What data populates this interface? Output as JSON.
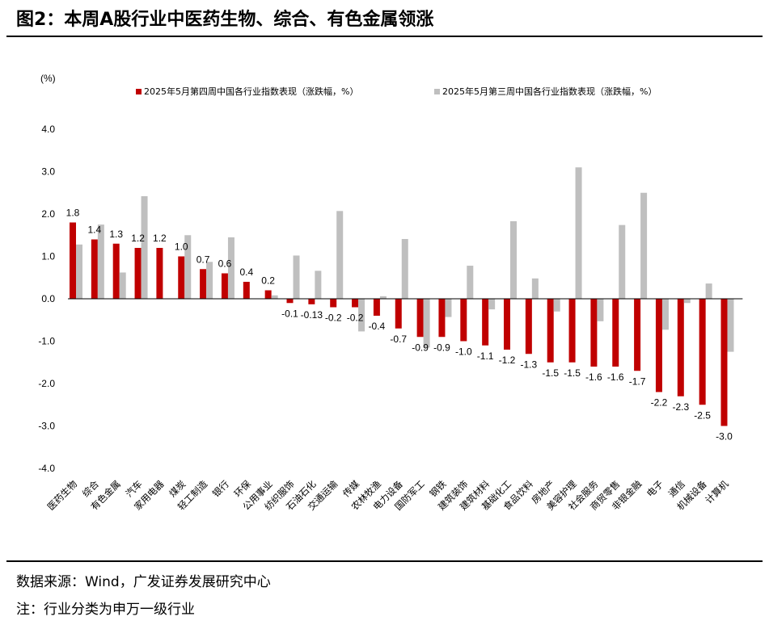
{
  "figure_title": "图2：本周A股行业中医药生物、综合、有色金属领涨",
  "source_text": "数据来源：Wind，广发证券发展研究中心",
  "note_text": "注：行业分类为申万一级行业",
  "colors": {
    "series1": "#C00000",
    "series2": "#BFBFBF"
  },
  "chart_data": {
    "type": "bar",
    "unit_label": "(%)",
    "ylim": [
      -4.0,
      4.0
    ],
    "yticks": [
      "4.0",
      "3.0",
      "2.0",
      "1.0",
      "0.0",
      "-1.0",
      "-2.0",
      "-3.0",
      "-4.0"
    ],
    "legend_position": "top",
    "grid": false,
    "categories": [
      "医药生物",
      "综合",
      "有色金属",
      "汽车",
      "家用电器",
      "煤炭",
      "轻工制造",
      "银行",
      "环保",
      "公用事业",
      "纺织服饰",
      "石油石化",
      "交通运输",
      "传媒",
      "农林牧渔",
      "电力设备",
      "国防军工",
      "钢铁",
      "建筑装饰",
      "建筑材料",
      "基础化工",
      "食品饮料",
      "房地产",
      "美容护理",
      "社会服务",
      "商贸零售",
      "非银金融",
      "电子",
      "通信",
      "机械设备",
      "计算机"
    ],
    "series": [
      {
        "name": "2025年5月第四周中国各行业指数表现（涨跌幅，%）",
        "values": [
          1.8,
          1.4,
          1.3,
          1.2,
          1.2,
          1.0,
          0.7,
          0.6,
          0.4,
          0.2,
          -0.1,
          -0.13,
          -0.2,
          -0.2,
          -0.4,
          -0.7,
          -0.9,
          -0.9,
          -1.0,
          -1.1,
          -1.2,
          -1.3,
          -1.5,
          -1.5,
          -1.6,
          -1.6,
          -1.7,
          -2.2,
          -2.3,
          -2.5,
          -3.0
        ],
        "labels": [
          "1.8",
          "1.4",
          "1.3",
          "1.2",
          "1.2",
          "1.0",
          "0.7",
          "0.6",
          "0.4",
          "0.2",
          "-0.1",
          "-0.13",
          "-0.2",
          "-0.2",
          "-0.4",
          "-0.7",
          "-0.9",
          "-0.9",
          "-1.0",
          "-1.1",
          "-1.2",
          "-1.3",
          "-1.5",
          "-1.5",
          "-1.6",
          "-1.6",
          "-1.7",
          "-2.2",
          "-2.3",
          "-2.5",
          "-3.0"
        ]
      },
      {
        "name": "2025年5月第三周中国各行业指数表现（涨跌幅，%）",
        "values": [
          1.28,
          1.75,
          0.62,
          2.42,
          0.0,
          1.5,
          0.87,
          1.45,
          0.0,
          0.08,
          1.02,
          0.66,
          2.07,
          -0.77,
          0.06,
          1.41,
          -1.15,
          -0.43,
          0.78,
          -0.25,
          1.83,
          0.48,
          -0.3,
          3.1,
          -0.53,
          1.74,
          2.5,
          -0.73,
          -0.1,
          0.36,
          -1.25
        ]
      }
    ]
  }
}
